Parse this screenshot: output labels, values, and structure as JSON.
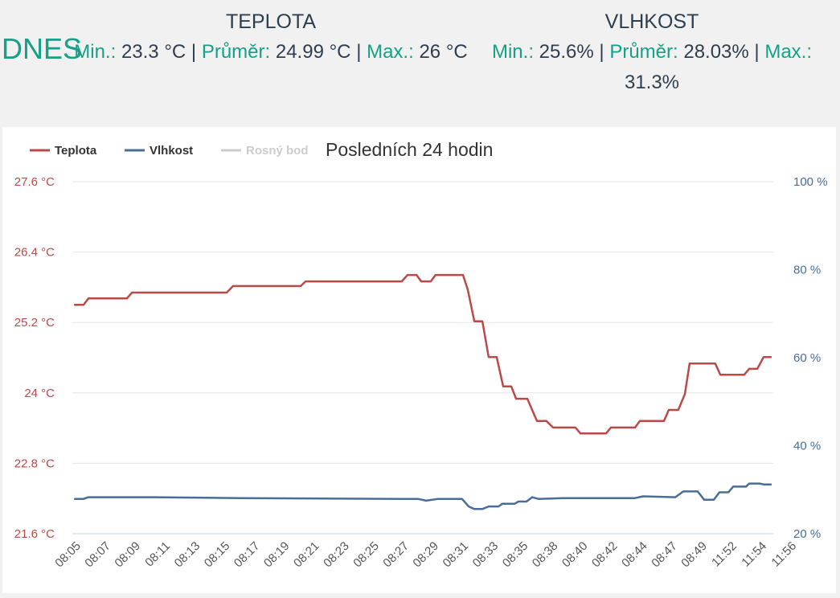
{
  "summary": {
    "label": "DNES",
    "teplota": {
      "title": "TEPLOTA",
      "min_label": "Min.:",
      "min": "23.3 °C",
      "avg_label": "Průměr:",
      "avg": "24.99 °C",
      "max_label": "Max.:",
      "max": "26 °C",
      "sep": "|"
    },
    "vlhkost": {
      "title": "VLHKOST",
      "min_label": "Min.:",
      "min": "25.6%",
      "avg_label": "Průměr:",
      "avg": "28.03%",
      "max_label": "Max.:",
      "max": "31.3%",
      "sep": "|"
    }
  },
  "chart_data": {
    "type": "line",
    "title": "Posledních 24 hodin",
    "legend": [
      {
        "name": "Teplota",
        "color": "#b94a48"
      },
      {
        "name": "Vlhkost",
        "color": "#4a6d98"
      },
      {
        "name": "Rosný bod",
        "color": "#cccccc",
        "hidden": true
      }
    ],
    "categories": [
      "08:05",
      "08:07",
      "08:09",
      "08:11",
      "08:13",
      "08:15",
      "08:17",
      "08:19",
      "08:21",
      "08:23",
      "08:25",
      "08:27",
      "08:29",
      "08:31",
      "08:33",
      "08:35",
      "08:38",
      "08:40",
      "08:42",
      "08:44",
      "08:47",
      "08:49",
      "11:52",
      "11:54",
      "11:56"
    ],
    "y_left": {
      "ticks": [
        "27.6 °C",
        "26.4 °C",
        "25.2 °C",
        "24 °C",
        "22.8 °C",
        "21.6 °C"
      ],
      "range": [
        21.6,
        27.6
      ]
    },
    "y_right": {
      "ticks": [
        "100 %",
        "80 %",
        "60 %",
        "40 %",
        "20 %"
      ],
      "range": [
        20,
        100
      ]
    },
    "series": [
      {
        "name": "Teplota",
        "axis": "left",
        "color": "#b94a48",
        "points": [
          [
            -0.13,
            25.5
          ],
          [
            0.19,
            25.5
          ],
          [
            0.35,
            25.61
          ],
          [
            1.64,
            25.61
          ],
          [
            1.81,
            25.71
          ],
          [
            4.99,
            25.71
          ],
          [
            5.2,
            25.82
          ],
          [
            7.47,
            25.82
          ],
          [
            7.63,
            25.9
          ],
          [
            10.86,
            25.9
          ],
          [
            11.05,
            26.01
          ],
          [
            11.35,
            26.01
          ],
          [
            11.51,
            25.9
          ],
          [
            11.83,
            25.9
          ],
          [
            11.99,
            26.01
          ],
          [
            12.91,
            26.01
          ],
          [
            13.07,
            25.76
          ],
          [
            13.29,
            25.22
          ],
          [
            13.56,
            25.22
          ],
          [
            13.77,
            24.61
          ],
          [
            14.04,
            24.61
          ],
          [
            14.26,
            24.11
          ],
          [
            14.53,
            24.11
          ],
          [
            14.69,
            23.9
          ],
          [
            15.07,
            23.9
          ],
          [
            15.23,
            23.71
          ],
          [
            15.39,
            23.52
          ],
          [
            15.71,
            23.52
          ],
          [
            15.93,
            23.41
          ],
          [
            16.68,
            23.41
          ],
          [
            16.85,
            23.31
          ],
          [
            17.71,
            23.31
          ],
          [
            17.87,
            23.41
          ],
          [
            18.68,
            23.41
          ],
          [
            18.84,
            23.52
          ],
          [
            19.65,
            23.52
          ],
          [
            19.81,
            23.71
          ],
          [
            20.13,
            23.71
          ],
          [
            20.35,
            23.98
          ],
          [
            20.51,
            24.5
          ],
          [
            21.37,
            24.5
          ],
          [
            21.54,
            24.31
          ],
          [
            22.34,
            24.31
          ],
          [
            22.51,
            24.41
          ],
          [
            22.78,
            24.41
          ],
          [
            22.99,
            24.61
          ],
          [
            23.26,
            24.61
          ]
        ]
      },
      {
        "name": "Vlhkost",
        "axis": "right",
        "color": "#4a6d98",
        "points": [
          [
            -0.13,
            27.9
          ],
          [
            0.19,
            27.9
          ],
          [
            0.35,
            28.3
          ],
          [
            2.51,
            28.3
          ],
          [
            5.47,
            28.1
          ],
          [
            10.86,
            27.9
          ],
          [
            11.4,
            27.9
          ],
          [
            11.67,
            27.5
          ],
          [
            12.08,
            27.9
          ],
          [
            12.88,
            27.9
          ],
          [
            13.1,
            26.2
          ],
          [
            13.29,
            25.6
          ],
          [
            13.56,
            25.6
          ],
          [
            13.77,
            26.2
          ],
          [
            14.1,
            26.2
          ],
          [
            14.23,
            26.8
          ],
          [
            14.64,
            26.8
          ],
          [
            14.77,
            27.3
          ],
          [
            15.04,
            27.3
          ],
          [
            15.23,
            28.3
          ],
          [
            15.44,
            27.9
          ],
          [
            16.25,
            28.1
          ],
          [
            18.68,
            28.1
          ],
          [
            18.95,
            28.5
          ],
          [
            20.03,
            28.3
          ],
          [
            20.3,
            29.6
          ],
          [
            20.78,
            29.6
          ],
          [
            21.0,
            27.7
          ],
          [
            21.32,
            27.7
          ],
          [
            21.51,
            29.4
          ],
          [
            21.81,
            29.4
          ],
          [
            21.97,
            30.7
          ],
          [
            22.4,
            30.7
          ],
          [
            22.51,
            31.4
          ],
          [
            22.86,
            31.4
          ],
          [
            22.99,
            31.2
          ],
          [
            23.26,
            31.2
          ]
        ]
      }
    ]
  }
}
